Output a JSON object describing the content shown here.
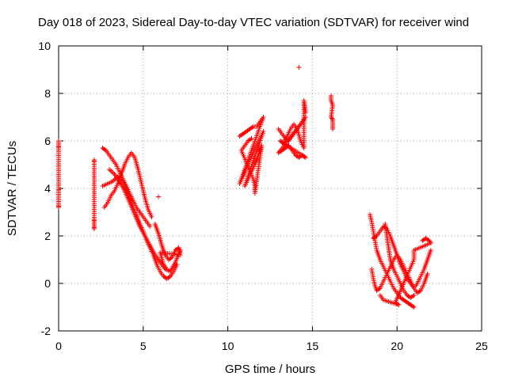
{
  "chart_data": {
    "type": "scatter",
    "title": "Day 018 of 2023, Sidereal Day-to-day VTEC variation (SDTVAR) for receiver wind",
    "xlabel": "GPS time / hours",
    "ylabel": "SDTVAR / TECUs",
    "xlim": [
      0,
      25
    ],
    "ylim": [
      -2,
      10
    ],
    "xticks": [
      "0",
      "5",
      "10",
      "15",
      "20",
      "25"
    ],
    "yticks": [
      "-2",
      "0",
      "2",
      "4",
      "6",
      "8",
      "10"
    ],
    "grid": true,
    "marker": "+",
    "color": "#ff0000",
    "series": [
      {
        "name": "t0",
        "points": [
          [
            0.0,
            6.0
          ],
          [
            0.0,
            5.8
          ],
          [
            0.0,
            5.7
          ],
          [
            0.0,
            3.95
          ],
          [
            0.0,
            3.9
          ],
          [
            0.0,
            3.3
          ],
          [
            0.0,
            3.2
          ]
        ]
      },
      {
        "name": "t1",
        "points": [
          [
            2.1,
            5.2
          ],
          [
            2.1,
            5.1
          ],
          [
            2.1,
            2.7
          ],
          [
            2.1,
            2.6
          ],
          [
            2.1,
            2.4
          ],
          [
            2.1,
            2.3
          ]
        ]
      },
      {
        "name": "t2",
        "points": [
          [
            2.6,
            4.1
          ],
          [
            2.9,
            4.2
          ],
          [
            3.2,
            4.3
          ],
          [
            3.5,
            4.5
          ],
          [
            3.8,
            4.3
          ],
          [
            4.0,
            4.0
          ],
          [
            4.2,
            3.6
          ],
          [
            4.4,
            3.2
          ],
          [
            4.6,
            2.9
          ],
          [
            4.8,
            2.5
          ],
          [
            5.0,
            2.2
          ],
          [
            5.2,
            1.8
          ],
          [
            5.4,
            1.5
          ],
          [
            5.6,
            1.2
          ],
          [
            5.8,
            0.8
          ],
          [
            6.0,
            0.5
          ],
          [
            6.2,
            0.3
          ],
          [
            6.4,
            0.2
          ],
          [
            6.6,
            0.3
          ],
          [
            6.8,
            0.5
          ],
          [
            7.0,
            0.8
          ]
        ]
      },
      {
        "name": "t3",
        "points": [
          [
            2.6,
            5.7
          ],
          [
            2.8,
            5.6
          ],
          [
            3.0,
            5.4
          ],
          [
            3.2,
            5.2
          ],
          [
            3.4,
            5.0
          ],
          [
            3.6,
            4.7
          ],
          [
            3.8,
            4.4
          ],
          [
            4.0,
            4.1
          ],
          [
            4.2,
            3.8
          ],
          [
            4.4,
            3.5
          ],
          [
            4.6,
            3.2
          ],
          [
            4.8,
            3.0
          ],
          [
            5.0,
            2.8
          ],
          [
            5.2,
            2.6
          ],
          [
            5.4,
            2.4
          ]
        ]
      },
      {
        "name": "t4",
        "points": [
          [
            2.7,
            3.2
          ],
          [
            2.9,
            3.4
          ],
          [
            3.1,
            3.7
          ],
          [
            3.3,
            3.9
          ],
          [
            3.5,
            4.2
          ],
          [
            3.7,
            4.6
          ],
          [
            3.9,
            5.0
          ],
          [
            4.1,
            5.3
          ],
          [
            4.3,
            5.5
          ],
          [
            4.5,
            5.3
          ],
          [
            4.7,
            4.8
          ],
          [
            4.9,
            4.2
          ],
          [
            5.1,
            3.6
          ],
          [
            5.3,
            3.1
          ],
          [
            5.5,
            2.8
          ]
        ]
      },
      {
        "name": "t5",
        "points": [
          [
            3.0,
            4.8
          ],
          [
            3.3,
            4.6
          ],
          [
            3.6,
            4.3
          ],
          [
            3.9,
            3.9
          ],
          [
            4.2,
            3.4
          ],
          [
            4.5,
            2.9
          ],
          [
            4.8,
            2.4
          ],
          [
            5.1,
            2.0
          ],
          [
            5.4,
            1.6
          ],
          [
            5.7,
            1.2
          ],
          [
            6.0,
            0.9
          ],
          [
            6.3,
            0.6
          ],
          [
            6.6,
            0.5
          ],
          [
            6.9,
            0.9
          ],
          [
            7.2,
            1.4
          ]
        ]
      },
      {
        "name": "t6",
        "points": [
          [
            5.7,
            2.5
          ],
          [
            5.9,
            2.1
          ],
          [
            6.1,
            1.6
          ],
          [
            6.3,
            1.2
          ],
          [
            6.5,
            1.0
          ],
          [
            6.7,
            1.1
          ],
          [
            6.9,
            1.4
          ],
          [
            7.1,
            1.5
          ],
          [
            7.2,
            1.2
          ],
          [
            6.0,
            1.3
          ],
          [
            6.2,
            0.8
          ],
          [
            6.4,
            0.6
          ]
        ]
      },
      {
        "name": "t7",
        "points": [
          [
            5.9,
            3.65
          ]
        ]
      },
      {
        "name": "t8",
        "points": [
          [
            10.7,
            6.2
          ],
          [
            10.9,
            6.3
          ],
          [
            11.1,
            6.4
          ],
          [
            11.3,
            6.5
          ],
          [
            11.5,
            6.6
          ],
          [
            11.7,
            6.6
          ],
          [
            11.9,
            6.8
          ],
          [
            12.1,
            7.0
          ],
          [
            10.7,
            4.2
          ],
          [
            10.9,
            4.5
          ],
          [
            11.1,
            4.9
          ],
          [
            11.3,
            5.2
          ],
          [
            11.5,
            5.5
          ],
          [
            11.7,
            5.8
          ],
          [
            11.9,
            6.1
          ],
          [
            12.1,
            6.4
          ],
          [
            11.0,
            4.1
          ],
          [
            11.2,
            4.4
          ],
          [
            11.4,
            4.7
          ],
          [
            11.6,
            5.0
          ],
          [
            11.8,
            5.4
          ],
          [
            12.0,
            5.8
          ],
          [
            11.6,
            3.8
          ],
          [
            11.6,
            4.1
          ],
          [
            11.5,
            4.4
          ],
          [
            10.8,
            5.6
          ],
          [
            11.0,
            5.8
          ],
          [
            11.2,
            6.0
          ],
          [
            11.4,
            6.1
          ]
        ]
      },
      {
        "name": "t9",
        "points": [
          [
            13.0,
            6.5
          ],
          [
            13.2,
            6.3
          ],
          [
            13.4,
            6.1
          ],
          [
            13.6,
            6.0
          ],
          [
            13.8,
            6.2
          ],
          [
            14.0,
            6.4
          ],
          [
            14.2,
            6.6
          ],
          [
            14.4,
            6.8
          ],
          [
            14.6,
            7.0
          ],
          [
            13.0,
            5.5
          ],
          [
            13.2,
            5.6
          ],
          [
            13.4,
            5.7
          ],
          [
            13.6,
            5.8
          ],
          [
            13.8,
            5.6
          ],
          [
            14.0,
            5.4
          ],
          [
            14.2,
            5.3
          ],
          [
            14.4,
            5.4
          ],
          [
            14.6,
            5.3
          ],
          [
            13.1,
            6.0
          ],
          [
            13.3,
            5.9
          ],
          [
            13.5,
            6.2
          ],
          [
            13.7,
            6.5
          ],
          [
            13.9,
            6.7
          ],
          [
            14.1,
            6.5
          ],
          [
            14.3,
            6.0
          ],
          [
            14.5,
            5.7
          ],
          [
            14.5,
            7.4
          ],
          [
            14.5,
            7.7
          ],
          [
            14.6,
            7.2
          ]
        ]
      },
      {
        "name": "t10",
        "points": [
          [
            14.2,
            9.1
          ]
        ]
      },
      {
        "name": "t11",
        "points": [
          [
            16.1,
            7.9
          ],
          [
            16.1,
            7.7
          ],
          [
            16.2,
            7.5
          ],
          [
            16.1,
            7.0
          ],
          [
            16.2,
            6.9
          ],
          [
            16.2,
            6.7
          ],
          [
            16.2,
            6.5
          ]
        ]
      },
      {
        "name": "t12",
        "points": [
          [
            18.4,
            2.9
          ],
          [
            18.5,
            2.6
          ],
          [
            18.6,
            2.2
          ],
          [
            18.7,
            1.8
          ],
          [
            18.8,
            1.4
          ],
          [
            19.0,
            1.0
          ],
          [
            19.2,
            0.7
          ],
          [
            19.4,
            0.4
          ],
          [
            19.6,
            0.1
          ],
          [
            19.8,
            -0.2
          ],
          [
            20.0,
            -0.4
          ],
          [
            20.2,
            -0.6
          ],
          [
            20.4,
            -0.7
          ],
          [
            20.6,
            -0.8
          ],
          [
            20.8,
            -0.9
          ],
          [
            21.0,
            -1.0
          ]
        ]
      },
      {
        "name": "t13",
        "points": [
          [
            18.5,
            0.6
          ],
          [
            18.6,
            0.2
          ],
          [
            18.7,
            -0.1
          ],
          [
            18.8,
            -0.3
          ],
          [
            19.0,
            -0.2
          ],
          [
            19.2,
            0.1
          ],
          [
            19.4,
            0.4
          ],
          [
            19.6,
            0.7
          ],
          [
            19.8,
            1.0
          ],
          [
            20.0,
            1.2
          ],
          [
            20.2,
            1.0
          ],
          [
            20.4,
            0.7
          ],
          [
            20.6,
            0.4
          ],
          [
            20.8,
            0.1
          ],
          [
            21.0,
            -0.2
          ],
          [
            21.2,
            0.0
          ],
          [
            21.4,
            0.3
          ],
          [
            21.6,
            0.6
          ],
          [
            21.8,
            1.0
          ],
          [
            22.0,
            1.4
          ]
        ]
      },
      {
        "name": "t14",
        "points": [
          [
            18.6,
            1.9
          ],
          [
            18.8,
            2.0
          ],
          [
            19.0,
            2.2
          ],
          [
            19.2,
            2.4
          ],
          [
            19.4,
            2.3
          ],
          [
            19.6,
            2.0
          ],
          [
            19.8,
            1.6
          ],
          [
            20.0,
            1.2
          ],
          [
            20.2,
            0.8
          ],
          [
            20.4,
            0.5
          ],
          [
            20.6,
            0.2
          ],
          [
            20.8,
            0.0
          ],
          [
            21.0,
            -0.2
          ],
          [
            21.2,
            -0.4
          ],
          [
            21.4,
            -0.3
          ],
          [
            21.6,
            0.0
          ],
          [
            21.8,
            0.4
          ]
        ]
      },
      {
        "name": "t15",
        "points": [
          [
            19.3,
            2.5
          ],
          [
            19.4,
            2.0
          ],
          [
            19.5,
            1.5
          ],
          [
            19.6,
            1.0
          ],
          [
            19.8,
            0.6
          ],
          [
            20.0,
            0.3
          ],
          [
            20.2,
            0.0
          ],
          [
            20.4,
            -0.3
          ],
          [
            20.6,
            -0.5
          ],
          [
            20.8,
            -0.6
          ],
          [
            21.0,
            -0.5
          ]
        ]
      },
      {
        "name": "t16",
        "points": [
          [
            21.5,
            1.8
          ],
          [
            21.7,
            1.9
          ],
          [
            21.9,
            1.8
          ],
          [
            22.0,
            1.7
          ],
          [
            21.0,
            1.4
          ],
          [
            21.0,
            1.2
          ],
          [
            21.0,
            1.0
          ],
          [
            19.9,
            -0.8
          ],
          [
            20.1,
            -0.9
          ],
          [
            19.2,
            -0.7
          ],
          [
            19.0,
            -0.5
          ]
        ]
      }
    ]
  }
}
